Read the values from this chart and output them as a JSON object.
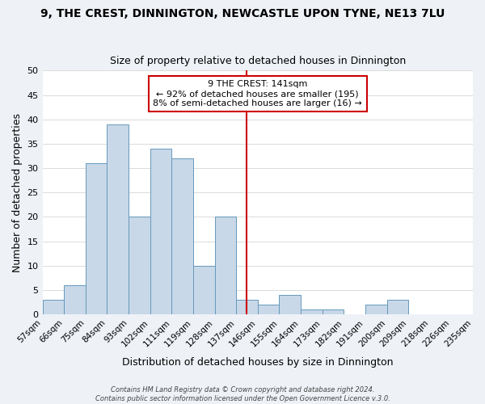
{
  "title1": "9, THE CREST, DINNINGTON, NEWCASTLE UPON TYNE, NE13 7LU",
  "title2": "Size of property relative to detached houses in Dinnington",
  "xlabel": "Distribution of detached houses by size in Dinnington",
  "ylabel": "Number of detached properties",
  "bin_labels": [
    "57sqm",
    "66sqm",
    "75sqm",
    "84sqm",
    "93sqm",
    "102sqm",
    "111sqm",
    "119sqm",
    "128sqm",
    "137sqm",
    "146sqm",
    "155sqm",
    "164sqm",
    "173sqm",
    "182sqm",
    "191sqm",
    "200sqm",
    "209sqm",
    "218sqm",
    "226sqm",
    "235sqm"
  ],
  "bar_heights": [
    3,
    6,
    31,
    39,
    20,
    34,
    32,
    10,
    20,
    3,
    2,
    4,
    1,
    1,
    0,
    2,
    3,
    0,
    0,
    0
  ],
  "bar_color": "#c8d8e8",
  "bar_edge_color": "#6699bb",
  "ylim": [
    0,
    50
  ],
  "yticks": [
    0,
    5,
    10,
    15,
    20,
    25,
    30,
    35,
    40,
    45,
    50
  ],
  "vline_color": "#cc0000",
  "vline_x": 9.5,
  "annotation_title": "9 THE CREST: 141sqm",
  "annotation_line1": "← 92% of detached houses are smaller (195)",
  "annotation_line2": "8% of semi-detached houses are larger (16) →",
  "annotation_box_color": "#ffffff",
  "annotation_box_edge": "#cc0000",
  "footer1": "Contains HM Land Registry data © Crown copyright and database right 2024.",
  "footer2": "Contains public sector information licensed under the Open Government Licence v.3.0.",
  "background_color": "#eef2f7",
  "plot_background": "#ffffff"
}
